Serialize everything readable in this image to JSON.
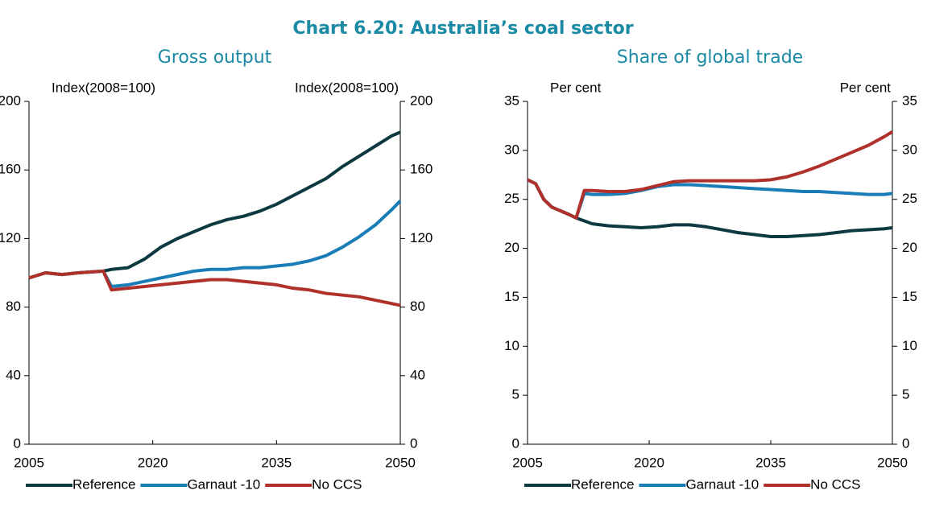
{
  "title": "Chart 6.20: Australia’s coal sector",
  "chart_data": [
    {
      "type": "line",
      "title": "Gross output",
      "y_label": "Index(2008=100)",
      "y2_label": "Index(2008=100)",
      "x": [
        2005,
        2007,
        2009,
        2011,
        2014,
        2015,
        2017,
        2019,
        2021,
        2023,
        2025,
        2027,
        2029,
        2031,
        2033,
        2035,
        2037,
        2039,
        2041,
        2043,
        2045,
        2047,
        2049,
        2050
      ],
      "series": [
        {
          "name": "Reference",
          "color": "#0d3a40",
          "values": [
            97,
            100,
            99,
            100,
            101,
            102,
            103,
            108,
            115,
            120,
            124,
            128,
            131,
            133,
            136,
            140,
            145,
            150,
            155,
            162,
            168,
            174,
            180,
            182
          ]
        },
        {
          "name": "Garnaut -10",
          "color": "#1a7db8",
          "values": [
            97,
            100,
            99,
            100,
            101,
            92,
            93,
            95,
            97,
            99,
            101,
            102,
            102,
            103,
            103,
            104,
            105,
            107,
            110,
            115,
            121,
            128,
            137,
            142
          ]
        },
        {
          "name": "No CCS",
          "color": "#b0302a",
          "values": [
            97,
            100,
            99,
            100,
            101,
            90,
            91,
            92,
            93,
            94,
            95,
            96,
            96,
            95,
            94,
            93,
            91,
            90,
            88,
            87,
            86,
            84,
            82,
            81
          ]
        }
      ],
      "xlim": [
        2005,
        2050
      ],
      "xticks": [
        2005,
        2020,
        2035,
        2050
      ],
      "ylim": [
        0,
        200
      ],
      "yticks": [
        0,
        40,
        80,
        120,
        160,
        200
      ],
      "y2lim": [
        0,
        200
      ],
      "y2ticks": [
        0,
        40,
        80,
        120,
        160,
        200
      ],
      "legend": "bottom"
    },
    {
      "type": "line",
      "title": "Share of global trade",
      "y_label": "Per cent",
      "y2_label": "Per cent",
      "x": [
        2005,
        2006,
        2007,
        2008,
        2010,
        2011,
        2012,
        2013,
        2015,
        2017,
        2019,
        2021,
        2023,
        2025,
        2027,
        2029,
        2031,
        2033,
        2035,
        2037,
        2039,
        2041,
        2043,
        2045,
        2047,
        2049,
        2050
      ],
      "series": [
        {
          "name": "Reference",
          "color": "#0d3a40",
          "values": [
            27,
            26.6,
            25,
            24.2,
            23.5,
            23.1,
            22.8,
            22.5,
            22.3,
            22.2,
            22.1,
            22.2,
            22.4,
            22.4,
            22.2,
            21.9,
            21.6,
            21.4,
            21.2,
            21.2,
            21.3,
            21.4,
            21.6,
            21.8,
            21.9,
            22,
            22.1
          ]
        },
        {
          "name": "Garnaut -10",
          "color": "#1a7db8",
          "values": [
            27,
            26.6,
            25,
            24.2,
            23.5,
            23.1,
            25.6,
            25.5,
            25.5,
            25.6,
            25.9,
            26.3,
            26.5,
            26.5,
            26.4,
            26.3,
            26.2,
            26.1,
            26.0,
            25.9,
            25.8,
            25.8,
            25.7,
            25.6,
            25.5,
            25.5,
            25.6
          ]
        },
        {
          "name": "No CCS",
          "color": "#b0302a",
          "values": [
            27,
            26.6,
            25,
            24.2,
            23.5,
            23.1,
            25.9,
            25.9,
            25.8,
            25.8,
            26.0,
            26.4,
            26.8,
            26.9,
            26.9,
            26.9,
            26.9,
            26.9,
            27.0,
            27.3,
            27.8,
            28.4,
            29.1,
            29.8,
            30.5,
            31.4,
            31.9
          ]
        }
      ],
      "xlim": [
        2005,
        2050
      ],
      "xticks": [
        2005,
        2020,
        2035,
        2050
      ],
      "ylim": [
        0,
        35
      ],
      "yticks": [
        0,
        5,
        10,
        15,
        20,
        25,
        30,
        35
      ],
      "y2lim": [
        0,
        35
      ],
      "y2ticks": [
        0,
        5,
        10,
        15,
        20,
        25,
        30,
        35
      ],
      "legend": "bottom"
    }
  ]
}
